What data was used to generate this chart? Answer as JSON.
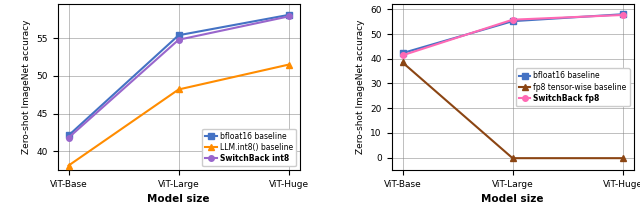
{
  "x_labels": [
    "ViT-Base",
    "ViT-Large",
    "ViT-Huge"
  ],
  "left": {
    "bfloat16": [
      42.1,
      55.4,
      58.1
    ],
    "llm_int8": [
      38.1,
      48.2,
      51.5
    ],
    "switchback_int8": [
      41.8,
      54.8,
      57.9
    ],
    "bfloat16_color": "#4472c4",
    "llm_int8_color": "#ff8c00",
    "switchback_int8_color": "#9966cc",
    "ylabel": "Zero-shot ImageNet accuracy",
    "xlabel": "Model size",
    "ylim": [
      37.5,
      59.5
    ],
    "yticks": [
      40,
      45,
      50,
      55
    ],
    "legend_labels": [
      "bfloat16 baseline",
      "LLM.int8() baseline",
      "SwitchBack int8"
    ]
  },
  "right": {
    "bfloat16": [
      42.3,
      55.2,
      58.0
    ],
    "fp8_tensorwise": [
      38.5,
      -0.2,
      -0.2
    ],
    "switchback_fp8": [
      41.4,
      55.8,
      57.7
    ],
    "bfloat16_color": "#4472c4",
    "fp8_tensorwise_color": "#8b4513",
    "switchback_fp8_color": "#ff69b4",
    "ylabel": "Zero-shot ImageNet accuracy",
    "xlabel": "Model size",
    "ylim": [
      -5,
      62
    ],
    "yticks": [
      0,
      10,
      20,
      30,
      40,
      50,
      60
    ],
    "legend_labels": [
      "bfloat16 baseline",
      "fp8 tensor-wise baseline",
      "SwitchBack fp8"
    ]
  }
}
